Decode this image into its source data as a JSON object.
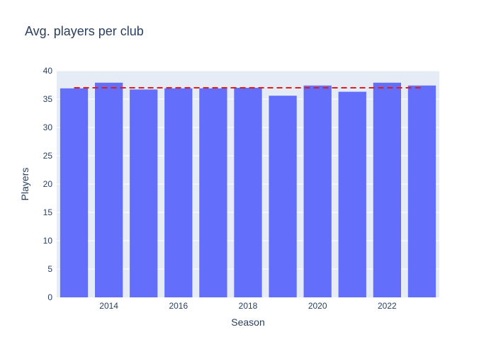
{
  "chart_data": {
    "type": "bar",
    "title": "Avg. players per club",
    "xlabel": "Season",
    "ylabel": "Players",
    "x": [
      2013,
      2014,
      2015,
      2016,
      2017,
      2018,
      2019,
      2020,
      2021,
      2022,
      2023
    ],
    "values": [
      36.9,
      37.9,
      36.7,
      36.9,
      36.9,
      37.0,
      35.6,
      37.4,
      36.3,
      37.9,
      37.4
    ],
    "xlim": [
      2012.5,
      2023.5
    ],
    "ylim": [
      0,
      40
    ],
    "x_tick_labels": [
      "2014",
      "2016",
      "2018",
      "2020",
      "2022"
    ],
    "y_tick_labels": [
      "0",
      "5",
      "10",
      "15",
      "20",
      "25",
      "30",
      "35",
      "40"
    ],
    "reference_line": {
      "style": "dashed",
      "value": 37.0,
      "color": "#e41a1c"
    },
    "grid": true,
    "legend": "none",
    "colors": {
      "bars": "#636efa",
      "plot_background": "#e5ecf6",
      "gridline": "#ffffff",
      "text": "#2a3f5f"
    }
  }
}
